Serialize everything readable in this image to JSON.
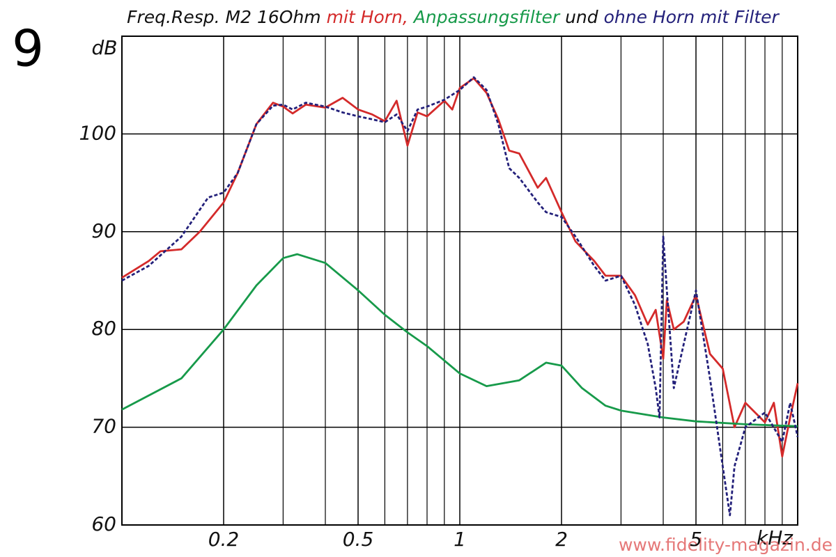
{
  "chart_data": {
    "type": "line",
    "figure_number": "9",
    "title_prefix": "Freq.Resp. M2 16Ohm",
    "title_joiner": "und",
    "y_label": "dB",
    "x_label": "kHz",
    "watermark": "www.fidelity-magazin.de",
    "log_x": true,
    "grid": true,
    "xlim": [
      0.1,
      10
    ],
    "ylim": [
      60,
      110
    ],
    "xticks": [
      0.2,
      0.5,
      1,
      2,
      5
    ],
    "xminor": [
      0.3,
      0.4,
      0.6,
      0.7,
      0.8,
      0.9,
      3,
      4,
      6,
      7,
      8,
      9,
      10
    ],
    "yticks": [
      60,
      70,
      80,
      90,
      100
    ],
    "series": [
      {
        "name": "mit Horn,",
        "color": "#d42a2a",
        "dashed": false,
        "x": [
          0.1,
          0.12,
          0.13,
          0.15,
          0.17,
          0.2,
          0.22,
          0.25,
          0.28,
          0.3,
          0.32,
          0.35,
          0.4,
          0.45,
          0.5,
          0.55,
          0.6,
          0.65,
          0.7,
          0.75,
          0.8,
          0.9,
          0.95,
          1.0,
          1.1,
          1.2,
          1.3,
          1.4,
          1.5,
          1.7,
          1.8,
          2.0,
          2.2,
          2.5,
          2.7,
          3,
          3.3,
          3.6,
          3.8,
          4,
          4.1,
          4.3,
          4.6,
          5,
          5.5,
          6,
          6.5,
          7,
          8,
          8.5,
          9,
          9.5,
          10
        ],
        "values": [
          85.3,
          87,
          88,
          88.2,
          90,
          93,
          96,
          101,
          103.2,
          102.8,
          102.1,
          103,
          102.7,
          103.7,
          102.5,
          102,
          101.3,
          103.4,
          98.8,
          102.2,
          101.8,
          103.4,
          102.5,
          104.7,
          105.7,
          104.2,
          101.5,
          98.3,
          98,
          94.5,
          95.5,
          92,
          89,
          87,
          85.5,
          85.5,
          83.5,
          80.5,
          82,
          77,
          83,
          80,
          80.8,
          83.5,
          77.5,
          76,
          70,
          72.5,
          70.5,
          72.5,
          67,
          71,
          74.5
        ]
      },
      {
        "name": "Anpassungsfilter",
        "color": "#179a4a",
        "dashed": false,
        "x": [
          0.1,
          0.15,
          0.2,
          0.25,
          0.3,
          0.33,
          0.4,
          0.5,
          0.6,
          0.7,
          0.8,
          1.0,
          1.2,
          1.5,
          1.8,
          2.0,
          2.3,
          2.7,
          3,
          4,
          5,
          7,
          10
        ],
        "values": [
          71.8,
          75,
          80,
          84.5,
          87.3,
          87.7,
          86.8,
          84,
          81.5,
          79.7,
          78.3,
          75.5,
          74.2,
          74.8,
          76.6,
          76.3,
          74,
          72.2,
          71.7,
          71,
          70.6,
          70.3,
          70.1
        ]
      },
      {
        "name": "ohne Horn mit Filter",
        "color": "#23207a",
        "dashed": true,
        "x": [
          0.1,
          0.12,
          0.15,
          0.18,
          0.2,
          0.22,
          0.25,
          0.28,
          0.3,
          0.32,
          0.35,
          0.4,
          0.45,
          0.5,
          0.55,
          0.6,
          0.65,
          0.7,
          0.75,
          0.8,
          0.9,
          1.0,
          1.1,
          1.2,
          1.3,
          1.4,
          1.5,
          1.7,
          1.8,
          2.0,
          2.2,
          2.5,
          2.7,
          3,
          3.3,
          3.6,
          3.8,
          3.9,
          4.0,
          4.1,
          4.3,
          4.6,
          5.0,
          5.5,
          6,
          6.3,
          6.5,
          7,
          8,
          9,
          9.5,
          10
        ],
        "values": [
          85,
          86.5,
          89.5,
          93.5,
          94,
          96,
          101,
          102.9,
          103,
          102.5,
          103.2,
          102.8,
          102.2,
          101.8,
          101.5,
          101.2,
          102,
          100.3,
          102.5,
          102.8,
          103.5,
          104.5,
          105.8,
          104.5,
          101,
          96.5,
          95.5,
          93,
          92,
          91.5,
          89.5,
          86.5,
          85,
          85.5,
          82.5,
          78.5,
          74,
          71,
          89.5,
          84,
          74,
          78.5,
          84,
          75,
          66,
          61,
          66,
          70,
          71.5,
          68.5,
          72.5,
          69
        ]
      }
    ]
  }
}
